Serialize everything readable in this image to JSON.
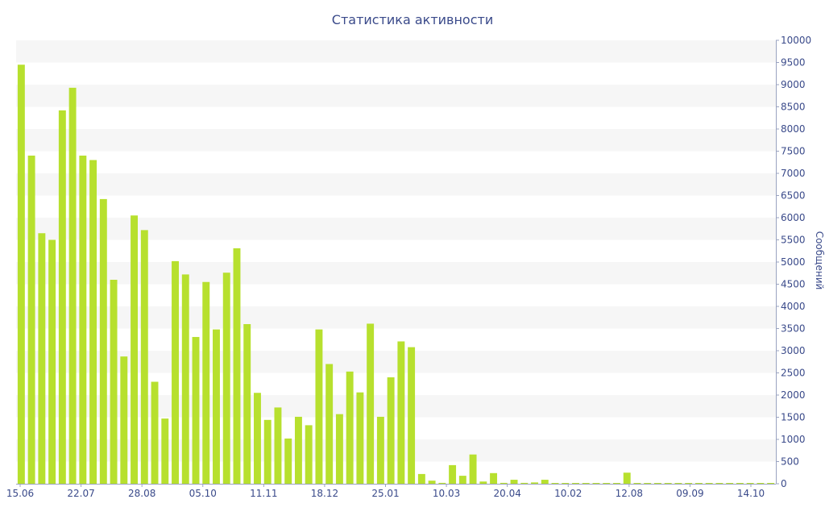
{
  "chart_data": {
    "type": "bar",
    "title": "Статистика активности",
    "xlabel": "",
    "ylabel": "Сообщений",
    "ylim": [
      0,
      10000
    ],
    "y_axis_position": "right",
    "grid": "alternating horizontal bands",
    "legend": "none",
    "bar_color": "#b7e02e",
    "band_color": "#f6f6f6",
    "text_color": "#3a4a8a",
    "x_tick_labels": [
      "15.06",
      "22.07",
      "28.08",
      "05.10",
      "11.11",
      "18.12",
      "25.01",
      "10.03",
      "20.04",
      "10.02",
      "12.08",
      "09.09",
      "14.10"
    ],
    "y_tick_labels": [
      "0",
      "500",
      "1000",
      "1500",
      "2000",
      "2500",
      "3000",
      "3500",
      "4000",
      "4500",
      "5000",
      "5500",
      "6000",
      "6500",
      "7000",
      "7500",
      "8000",
      "8500",
      "9000",
      "9500",
      "10000"
    ],
    "values": [
      9450,
      7400,
      5650,
      5500,
      8420,
      8930,
      7400,
      7300,
      6420,
      4600,
      2870,
      6050,
      5720,
      2300,
      1470,
      5020,
      4720,
      3310,
      4550,
      3480,
      4760,
      5310,
      3600,
      2050,
      1440,
      1720,
      1020,
      1510,
      1320,
      3480,
      2700,
      1570,
      2530,
      2060,
      3610,
      1510,
      2400,
      3210,
      3080,
      220,
      70,
      20,
      420,
      180,
      660,
      50,
      240,
      20,
      90,
      20,
      30,
      90,
      10,
      10,
      10,
      10,
      10,
      10,
      10,
      250,
      10,
      10,
      10,
      10,
      10,
      10,
      10,
      10,
      10,
      10,
      10,
      10,
      10,
      10
    ]
  }
}
